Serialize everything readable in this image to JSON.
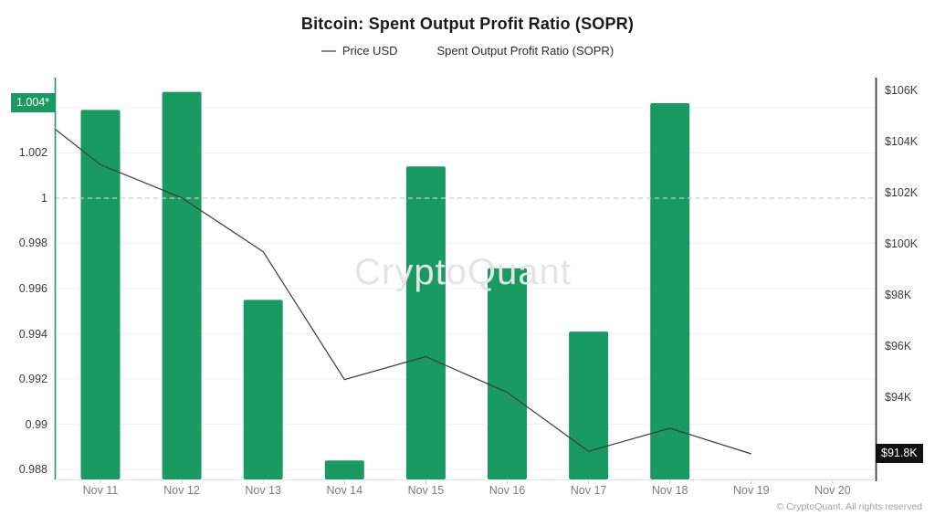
{
  "header": {
    "title": "Bitcoin: Spent Output Profit Ratio (SOPR)",
    "legend": [
      {
        "label": "Price USD",
        "marker": "line-dash",
        "color": "#8a8a8a"
      },
      {
        "label": "Spent Output Profit Ratio (SOPR)",
        "marker": "dot",
        "color": "#1a9a63"
      }
    ]
  },
  "chart_data": {
    "type": "bar+line",
    "title": "Bitcoin: Spent Output Profit Ratio (SOPR)",
    "categories": [
      "Nov 11",
      "Nov 12",
      "Nov 13",
      "Nov 14",
      "Nov 15",
      "Nov 16",
      "Nov 17",
      "Nov 18",
      "Nov 19",
      "Nov 20"
    ],
    "series": [
      {
        "name": "Spent Output Profit Ratio (SOPR)",
        "type": "bar",
        "axis": "left",
        "color": "#1a9a63",
        "values": [
          1.0039,
          1.0047,
          0.9955,
          0.9884,
          1.0014,
          0.9969,
          0.9941,
          1.0042,
          null,
          null
        ]
      },
      {
        "name": "Price USD",
        "type": "line",
        "axis": "right",
        "color": "#3a3a3a",
        "unit": "K USD",
        "edge_start_value": 104.5,
        "values": [
          103.1,
          101.8,
          99.7,
          94.7,
          95.6,
          94.2,
          91.9,
          92.8,
          91.8,
          null
        ]
      }
    ],
    "left_axis": {
      "ticks": [
        1.004,
        1.002,
        1,
        0.998,
        0.996,
        0.994,
        0.992,
        0.99,
        0.988
      ],
      "range": [
        0.98756,
        1.00533
      ],
      "badge": "1.004*",
      "badge_value": 1.0042,
      "baseline": 1,
      "axis_color": "#1a9a63"
    },
    "right_axis": {
      "ticks": [
        106,
        104,
        102,
        100,
        98,
        96,
        94
      ],
      "tick_prefix": "$",
      "tick_suffix": "K",
      "range": [
        90.8,
        106.5
      ],
      "badge": "$91.8K",
      "badge_value": 91.8,
      "axis_color": "#404040"
    },
    "grid": {
      "solid_color": "#f1f1f3",
      "dashed_baseline_color": "#cccccc"
    }
  },
  "watermark": "CryptoQuant",
  "footer": "© CryptoQuant. All rights reserved",
  "colors": {
    "accent_green": "#1a9a63",
    "price_line": "#3a3a3a",
    "badge_dark": "#111111"
  }
}
